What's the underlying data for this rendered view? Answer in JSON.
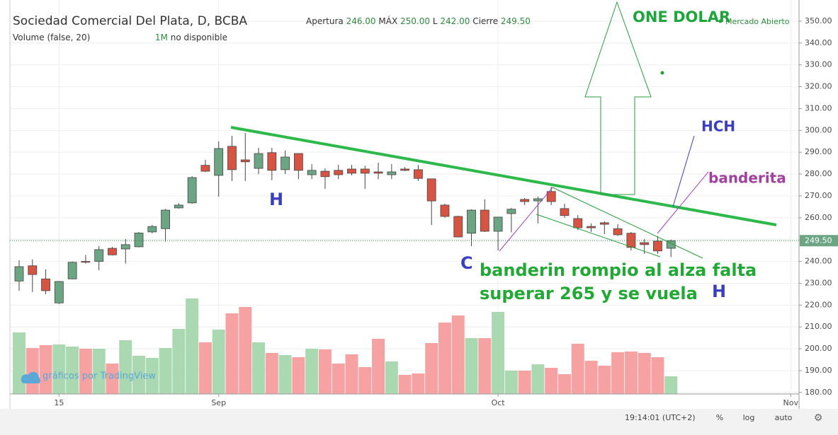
{
  "chart_data": {
    "type": "candlestick",
    "title": "Sociedad Comercial Del Plata, D, BCBA",
    "legend": {
      "open_label": "Apertura",
      "open": "246.00",
      "high_label": "MÁX",
      "high": "250.00",
      "low_label": "L",
      "low": "242.00",
      "close_label": "Cierre",
      "close": "249.50"
    },
    "volume_title": "Volume (false, 20)",
    "volume_interval": "1M",
    "volume_status": "no disponible",
    "market_status": "Mercado Abierto",
    "watermark": "gráficos por TradingView",
    "up_color": "#6ba583",
    "down_color": "#d75442",
    "up_volume_color": "#a9d8b1",
    "down_volume_color": "#f6a2a2",
    "open": [
      231,
      238,
      232,
      221,
      232,
      240,
      240,
      246,
      245.7,
      246.7,
      253.5,
      255,
      264.5,
      266.8,
      284,
      279.4,
      292.7,
      286.5,
      282.6,
      289.8,
      282,
      289.4,
      279.7,
      281.3,
      281.7,
      282.3,
      282.3,
      281,
      279.7,
      282.3,
      282,
      277.8,
      265.8,
      260.6,
      252.9,
      263.5,
      253.8,
      261.9,
      268.4,
      267.7,
      272,
      264.2,
      259.6,
      256,
      257.7,
      255,
      252.9,
      248.6,
      249.3,
      246
    ],
    "high": [
      240.5,
      240.9,
      236.3,
      231,
      240,
      243,
      247,
      246.7,
      250.3,
      253.5,
      256.7,
      264,
      266.7,
      279,
      286.5,
      295,
      297.5,
      298.8,
      292,
      292,
      290.8,
      289.4,
      284.5,
      282.6,
      284.2,
      284.2,
      283.8,
      285.2,
      284.6,
      283.2,
      284.2,
      277.8,
      266.4,
      260.9,
      263.9,
      268.4,
      260.3,
      264.5,
      269,
      269.7,
      274.2,
      266.4,
      261.2,
      257.4,
      258.4,
      257.1,
      253.5,
      250.2,
      251.6,
      250
    ],
    "low": [
      226.6,
      226,
      225,
      220.5,
      231.8,
      239,
      236,
      242.7,
      239,
      246.4,
      252.9,
      249,
      264.2,
      266.4,
      280.9,
      269.7,
      276.8,
      276.8,
      280,
      277.2,
      280,
      277.7,
      277.7,
      273.2,
      277.7,
      279.4,
      273.2,
      277.7,
      277.7,
      281.3,
      276.8,
      256.7,
      260,
      251,
      247,
      253.5,
      245,
      253.3,
      265.8,
      257.4,
      265.8,
      260,
      254.4,
      253.5,
      252.5,
      251.6,
      245,
      243.4,
      243.4,
      242
    ],
    "close": [
      237.6,
      234,
      226.6,
      230.8,
      239.6,
      239.6,
      245.4,
      243,
      247.7,
      253,
      256,
      263.5,
      265.8,
      278.4,
      281.3,
      291.7,
      282,
      285.6,
      289.4,
      281.7,
      287.8,
      281.7,
      281.7,
      278.8,
      279.7,
      280.4,
      280.4,
      280.4,
      281,
      281.7,
      278,
      267.7,
      260.6,
      251.2,
      263.5,
      253.8,
      260.3,
      263.9,
      267.4,
      268.7,
      267.4,
      261,
      255.4,
      255.4,
      257,
      252.2,
      246.4,
      247.7,
      244.8,
      249.5
    ],
    "volume": [
      87,
      65,
      69,
      70,
      67,
      64,
      64,
      43,
      76,
      54,
      51,
      65,
      92,
      135,
      73,
      91,
      114,
      123,
      73,
      58,
      55,
      52,
      64,
      63,
      43,
      56,
      38,
      78,
      46,
      27,
      29,
      72,
      101,
      111,
      79,
      79,
      116,
      33,
      33,
      42,
      37,
      28,
      71,
      47,
      40,
      59,
      60,
      58,
      52,
      25
    ],
    "x_labels": [
      {
        "index": 3,
        "label": "15"
      },
      {
        "index": 15,
        "label": "Sep"
      },
      {
        "index": 36,
        "label": "Oct"
      },
      {
        "index": 58,
        "label": "Nov"
      }
    ],
    "ylim": [
      179.3,
      359.7
    ],
    "yticks": [
      {
        "value": 180,
        "label": "180.00"
      },
      {
        "value": 190,
        "label": "190.00"
      },
      {
        "value": 200,
        "label": "200.00"
      },
      {
        "value": 210,
        "label": "210.00"
      },
      {
        "value": 220,
        "label": "220.00"
      },
      {
        "value": 230,
        "label": "230.00"
      },
      {
        "value": 240,
        "label": "240.00"
      },
      {
        "value": 250,
        "label": "250.00"
      },
      {
        "value": 260,
        "label": "260.00"
      },
      {
        "value": 270,
        "label": "270.00"
      },
      {
        "value": 280,
        "label": "280.00"
      },
      {
        "value": 290,
        "label": "290.00"
      },
      {
        "value": 300,
        "label": "300.00"
      },
      {
        "value": 310,
        "label": "310.00"
      },
      {
        "value": 320,
        "label": "320.00"
      },
      {
        "value": 330,
        "label": "330.00"
      },
      {
        "value": 340,
        "label": "340.00"
      },
      {
        "value": 350,
        "label": "350.00"
      }
    ],
    "last_price": {
      "value": 249.5,
      "label": "249.50"
    },
    "annotations": {
      "one_dolar": "ONE DOLAR",
      "hch": "HCH",
      "banderita": "banderita",
      "h_left": "H",
      "c": "C",
      "h_right": "H",
      "note_line1": "banderin rompio al alza falta",
      "note_line2": "superar 265 y se vuela"
    },
    "status_bar": {
      "time": "19:14:01 (UTC+2)",
      "percent": "%",
      "log": "log",
      "auto": "auto"
    }
  }
}
